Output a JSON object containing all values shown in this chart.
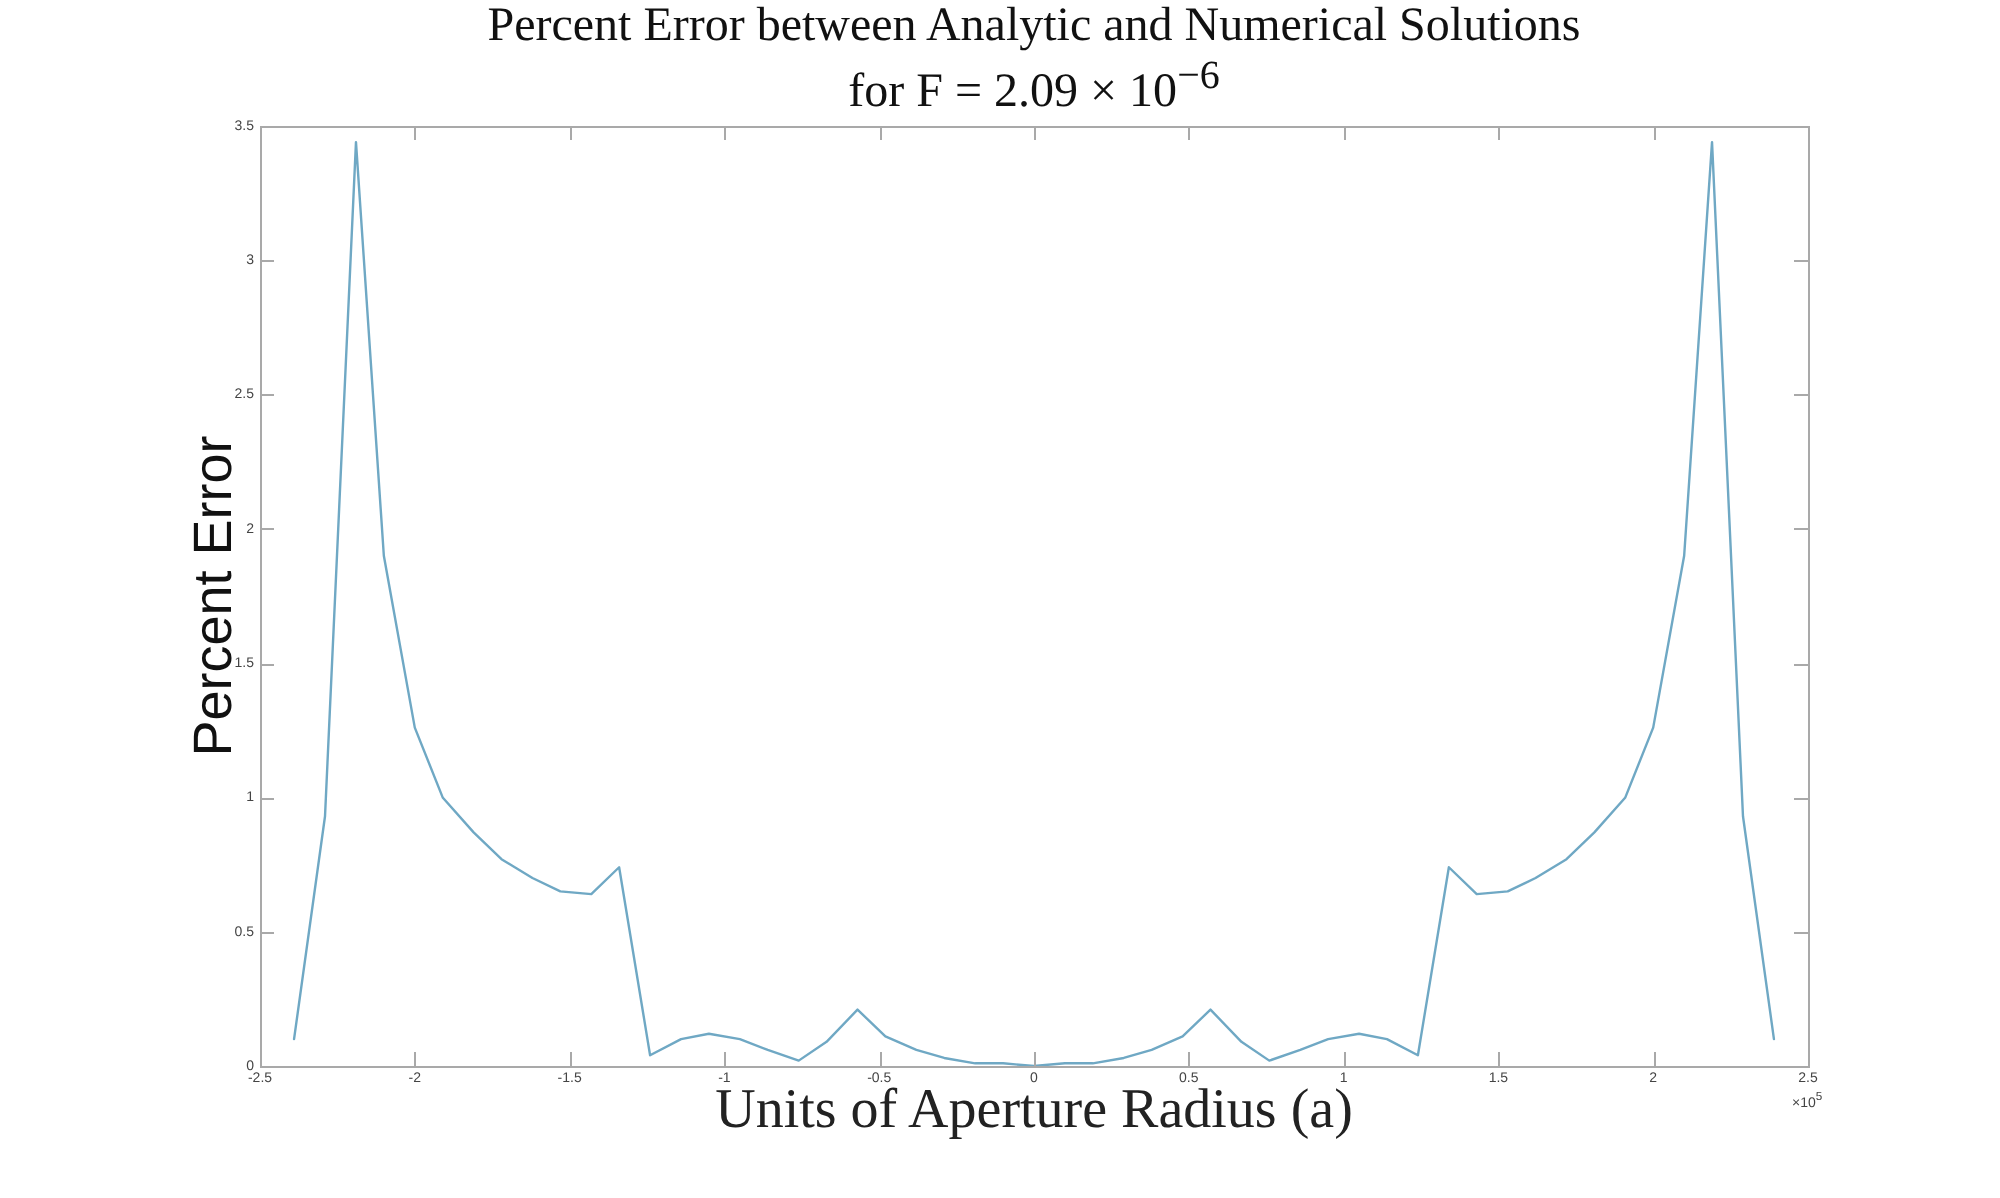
{
  "chart_data": {
    "type": "line",
    "title": "Percent Error between Analytic and Numerical Solutions",
    "subtitle": "for F = 2.09 × 10$^{−6}$",
    "xlabel": "Units of Aperture Radius (a)",
    "ylabel": "Percent Error",
    "annotations": [
      "×10$^{5}$"
    ],
    "x": [
      -2.39,
      -2.29,
      -2.19,
      -2.1,
      -2.0,
      -1.91,
      -1.81,
      -1.72,
      -1.62,
      -1.53,
      -1.43,
      -1.34,
      -1.24,
      -1.14,
      -1.05,
      -0.95,
      -0.86,
      -0.76,
      -0.67,
      -0.57,
      -0.48,
      -0.38,
      -0.29,
      -0.19,
      -0.1,
      0,
      0.1,
      0.19,
      0.29,
      0.38,
      0.48,
      0.57,
      0.67,
      0.76,
      0.86,
      0.95,
      1.05,
      1.14,
      1.24,
      1.34,
      1.43,
      1.53,
      1.62,
      1.72,
      1.81,
      1.91,
      2.0,
      2.1,
      2.19,
      2.29,
      2.39
    ],
    "series": [
      {
        "color": "#6fa8c4",
        "values": [
          0.1,
          0.93,
          3.44,
          1.9,
          1.26,
          1.0,
          0.87,
          0.77,
          0.7,
          0.65,
          0.64,
          0.74,
          0.04,
          0.1,
          0.12,
          0.1,
          0.06,
          0.02,
          0.09,
          0.21,
          0.11,
          0.06,
          0.03,
          0.01,
          0.01,
          0,
          0.01,
          0.01,
          0.03,
          0.06,
          0.11,
          0.21,
          0.09,
          0.02,
          0.06,
          0.1,
          0.12,
          0.1,
          0.04,
          0.74,
          0.64,
          0.65,
          0.7,
          0.77,
          0.87,
          1.0,
          1.26,
          1.9,
          3.44,
          0.93,
          0.1
        ]
      }
    ],
    "xlim": [
      -2.5,
      2.5
    ],
    "xticks": [
      -2.5,
      -2,
      -1.5,
      -1,
      -0.5,
      0,
      0.5,
      1,
      1.5,
      2,
      2.5
    ],
    "ylim": [
      0,
      3.5
    ],
    "yticks": [
      0,
      0.5,
      1,
      1.5,
      2,
      2.5,
      3,
      3.5
    ],
    "grid": false,
    "legend": false,
    "marker": "none",
    "line_style": "solid"
  }
}
